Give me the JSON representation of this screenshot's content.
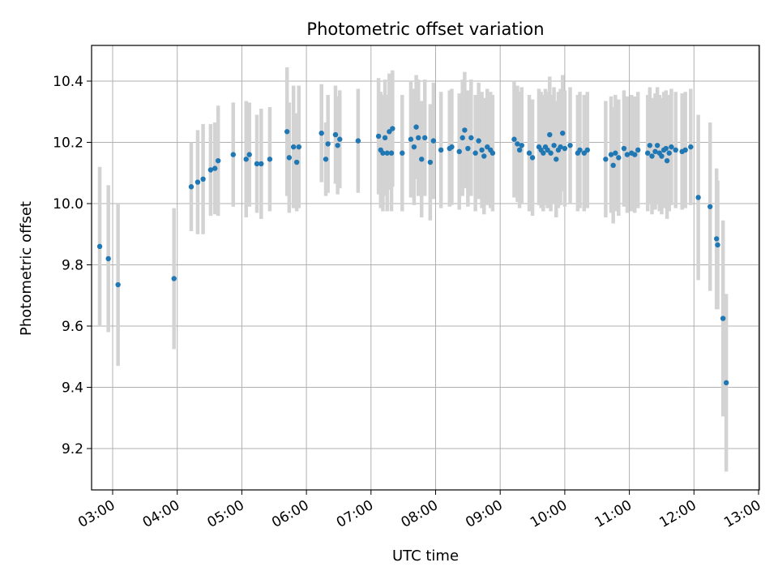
{
  "chart_data": {
    "type": "scatter",
    "title": "Photometric offset variation",
    "xlabel": "UTC time",
    "ylabel": "Photometric offset",
    "xlim": [
      "02:40",
      "13:00"
    ],
    "ylim": [
      9.07,
      10.52
    ],
    "grid": true,
    "legend": "none",
    "colors": {
      "points": "#1f77b4",
      "errorbars": "#d3d3d3",
      "grid": "#b0b0b0"
    },
    "x_ticks": [
      "03:00",
      "04:00",
      "05:00",
      "06:00",
      "07:00",
      "08:00",
      "09:00",
      "10:00",
      "11:00",
      "12:00",
      "13:00"
    ],
    "y_ticks": [
      9.2,
      9.4,
      9.6,
      9.8,
      10.0,
      10.2,
      10.4
    ],
    "y_tick_labels": [
      "9.2",
      "9.4",
      "9.6",
      "9.8",
      "10.0",
      "10.2",
      "10.4"
    ],
    "series": [
      {
        "points": [
          {
            "x": "02:48",
            "y": 9.86,
            "err": 0.26
          },
          {
            "x": "02:56",
            "y": 9.82,
            "err": 0.24
          },
          {
            "x": "03:05",
            "y": 9.735,
            "err": 0.265
          },
          {
            "x": "03:57",
            "y": 9.755,
            "err": 0.23
          },
          {
            "x": "04:13",
            "y": 10.055,
            "err": 0.145
          },
          {
            "x": "04:19",
            "y": 10.07,
            "err": 0.17
          },
          {
            "x": "04:24",
            "y": 10.08,
            "err": 0.18
          },
          {
            "x": "04:31",
            "y": 10.11,
            "err": 0.15
          },
          {
            "x": "04:35",
            "y": 10.115,
            "err": 0.15
          },
          {
            "x": "04:38",
            "y": 10.14,
            "err": 0.18
          },
          {
            "x": "04:52",
            "y": 10.16,
            "err": 0.17
          },
          {
            "x": "05:04",
            "y": 10.145,
            "err": 0.19
          },
          {
            "x": "05:07",
            "y": 10.16,
            "err": 0.17
          },
          {
            "x": "05:14",
            "y": 10.13,
            "err": 0.16
          },
          {
            "x": "05:18",
            "y": 10.13,
            "err": 0.18
          },
          {
            "x": "05:26",
            "y": 10.145,
            "err": 0.17
          },
          {
            "x": "05:42",
            "y": 10.235,
            "err": 0.21
          },
          {
            "x": "05:44",
            "y": 10.15,
            "err": 0.18
          },
          {
            "x": "05:48",
            "y": 10.185,
            "err": 0.2
          },
          {
            "x": "05:51",
            "y": 10.135,
            "err": 0.16
          },
          {
            "x": "05:53",
            "y": 10.185,
            "err": 0.2
          },
          {
            "x": "06:14",
            "y": 10.23,
            "err": 0.16
          },
          {
            "x": "06:18",
            "y": 10.145,
            "err": 0.12
          },
          {
            "x": "06:20",
            "y": 10.195,
            "err": 0.16
          },
          {
            "x": "06:27",
            "y": 10.225,
            "err": 0.16
          },
          {
            "x": "06:29",
            "y": 10.19,
            "err": 0.16
          },
          {
            "x": "06:31",
            "y": 10.21,
            "err": 0.16
          },
          {
            "x": "06:48",
            "y": 10.205,
            "err": 0.17
          },
          {
            "x": "07:07",
            "y": 10.22,
            "err": 0.19
          },
          {
            "x": "07:09",
            "y": 10.175,
            "err": 0.19
          },
          {
            "x": "07:11",
            "y": 10.165,
            "err": 0.19
          },
          {
            "x": "07:13",
            "y": 10.215,
            "err": 0.19
          },
          {
            "x": "07:15",
            "y": 10.165,
            "err": 0.19
          },
          {
            "x": "07:17",
            "y": 10.235,
            "err": 0.19
          },
          {
            "x": "07:19",
            "y": 10.165,
            "err": 0.19
          },
          {
            "x": "07:20",
            "y": 10.245,
            "err": 0.19
          },
          {
            "x": "07:29",
            "y": 10.165,
            "err": 0.19
          },
          {
            "x": "07:37",
            "y": 10.21,
            "err": 0.19
          },
          {
            "x": "07:40",
            "y": 10.185,
            "err": 0.19
          },
          {
            "x": "07:42",
            "y": 10.25,
            "err": 0.17
          },
          {
            "x": "07:44",
            "y": 10.215,
            "err": 0.19
          },
          {
            "x": "07:47",
            "y": 10.145,
            "err": 0.19
          },
          {
            "x": "07:50",
            "y": 10.215,
            "err": 0.19
          },
          {
            "x": "07:55",
            "y": 10.135,
            "err": 0.19
          },
          {
            "x": "07:58",
            "y": 10.205,
            "err": 0.19
          },
          {
            "x": "08:05",
            "y": 10.175,
            "err": 0.19
          },
          {
            "x": "08:13",
            "y": 10.18,
            "err": 0.19
          },
          {
            "x": "08:15",
            "y": 10.185,
            "err": 0.19
          },
          {
            "x": "08:22",
            "y": 10.17,
            "err": 0.19
          },
          {
            "x": "08:25",
            "y": 10.215,
            "err": 0.19
          },
          {
            "x": "08:27",
            "y": 10.24,
            "err": 0.19
          },
          {
            "x": "08:30",
            "y": 10.18,
            "err": 0.19
          },
          {
            "x": "08:33",
            "y": 10.215,
            "err": 0.19
          },
          {
            "x": "08:37",
            "y": 10.165,
            "err": 0.19
          },
          {
            "x": "08:40",
            "y": 10.205,
            "err": 0.19
          },
          {
            "x": "08:43",
            "y": 10.175,
            "err": 0.19
          },
          {
            "x": "08:45",
            "y": 10.155,
            "err": 0.19
          },
          {
            "x": "08:48",
            "y": 10.185,
            "err": 0.19
          },
          {
            "x": "08:51",
            "y": 10.175,
            "err": 0.19
          },
          {
            "x": "08:53",
            "y": 10.165,
            "err": 0.19
          },
          {
            "x": "09:13",
            "y": 10.21,
            "err": 0.19
          },
          {
            "x": "09:16",
            "y": 10.195,
            "err": 0.19
          },
          {
            "x": "09:18",
            "y": 10.175,
            "err": 0.19
          },
          {
            "x": "09:20",
            "y": 10.19,
            "err": 0.19
          },
          {
            "x": "09:27",
            "y": 10.165,
            "err": 0.19
          },
          {
            "x": "09:30",
            "y": 10.15,
            "err": 0.19
          },
          {
            "x": "09:36",
            "y": 10.185,
            "err": 0.19
          },
          {
            "x": "09:38",
            "y": 10.175,
            "err": 0.19
          },
          {
            "x": "09:40",
            "y": 10.165,
            "err": 0.19
          },
          {
            "x": "09:42",
            "y": 10.185,
            "err": 0.19
          },
          {
            "x": "09:44",
            "y": 10.175,
            "err": 0.19
          },
          {
            "x": "09:46",
            "y": 10.225,
            "err": 0.19
          },
          {
            "x": "09:47",
            "y": 10.165,
            "err": 0.19
          },
          {
            "x": "09:50",
            "y": 10.19,
            "err": 0.19
          },
          {
            "x": "09:52",
            "y": 10.145,
            "err": 0.19
          },
          {
            "x": "09:54",
            "y": 10.175,
            "err": 0.19
          },
          {
            "x": "09:56",
            "y": 10.185,
            "err": 0.19
          },
          {
            "x": "09:58",
            "y": 10.23,
            "err": 0.19
          },
          {
            "x": "10:00",
            "y": 10.18,
            "err": 0.19
          },
          {
            "x": "10:05",
            "y": 10.19,
            "err": 0.19
          },
          {
            "x": "10:12",
            "y": 10.165,
            "err": 0.19
          },
          {
            "x": "10:14",
            "y": 10.175,
            "err": 0.19
          },
          {
            "x": "10:18",
            "y": 10.165,
            "err": 0.19
          },
          {
            "x": "10:21",
            "y": 10.175,
            "err": 0.19
          },
          {
            "x": "10:38",
            "y": 10.145,
            "err": 0.19
          },
          {
            "x": "10:43",
            "y": 10.16,
            "err": 0.19
          },
          {
            "x": "10:45",
            "y": 10.125,
            "err": 0.19
          },
          {
            "x": "10:47",
            "y": 10.165,
            "err": 0.19
          },
          {
            "x": "10:50",
            "y": 10.15,
            "err": 0.19
          },
          {
            "x": "10:55",
            "y": 10.18,
            "err": 0.19
          },
          {
            "x": "10:58",
            "y": 10.16,
            "err": 0.19
          },
          {
            "x": "11:02",
            "y": 10.165,
            "err": 0.19
          },
          {
            "x": "11:05",
            "y": 10.16,
            "err": 0.19
          },
          {
            "x": "11:08",
            "y": 10.175,
            "err": 0.19
          },
          {
            "x": "11:17",
            "y": 10.165,
            "err": 0.19
          },
          {
            "x": "11:19",
            "y": 10.19,
            "err": 0.19
          },
          {
            "x": "11:21",
            "y": 10.155,
            "err": 0.19
          },
          {
            "x": "11:24",
            "y": 10.17,
            "err": 0.19
          },
          {
            "x": "11:26",
            "y": 10.19,
            "err": 0.19
          },
          {
            "x": "11:28",
            "y": 10.165,
            "err": 0.19
          },
          {
            "x": "11:30",
            "y": 10.155,
            "err": 0.19
          },
          {
            "x": "11:32",
            "y": 10.175,
            "err": 0.19
          },
          {
            "x": "11:34",
            "y": 10.18,
            "err": 0.19
          },
          {
            "x": "11:35",
            "y": 10.14,
            "err": 0.19
          },
          {
            "x": "11:37",
            "y": 10.165,
            "err": 0.19
          },
          {
            "x": "11:39",
            "y": 10.185,
            "err": 0.19
          },
          {
            "x": "11:43",
            "y": 10.175,
            "err": 0.19
          },
          {
            "x": "11:49",
            "y": 10.17,
            "err": 0.19
          },
          {
            "x": "11:52",
            "y": 10.175,
            "err": 0.19
          },
          {
            "x": "11:57",
            "y": 10.185,
            "err": 0.19
          },
          {
            "x": "12:04",
            "y": 10.02,
            "err": 0.27
          },
          {
            "x": "12:15",
            "y": 9.99,
            "err": 0.275
          },
          {
            "x": "12:21",
            "y": 9.885,
            "err": 0.23
          },
          {
            "x": "12:22",
            "y": 9.865,
            "err": 0.21
          },
          {
            "x": "12:27",
            "y": 9.625,
            "err": 0.32
          },
          {
            "x": "12:30",
            "y": 9.415,
            "err": 0.29
          }
        ]
      }
    ]
  }
}
